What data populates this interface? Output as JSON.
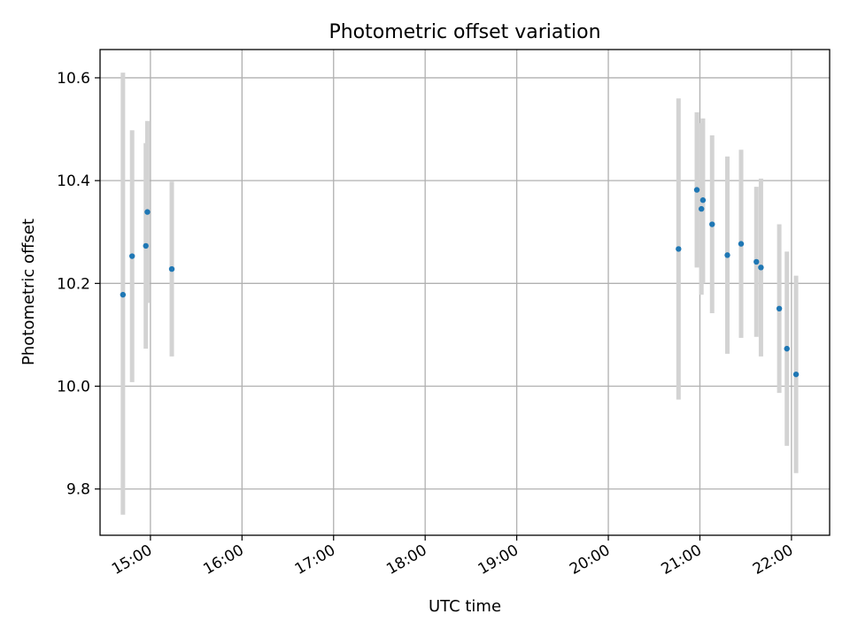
{
  "chart_data": {
    "type": "scatter",
    "title": "Photometric offset variation",
    "xlabel": "UTC time",
    "ylabel": "Photometric offset",
    "x_unit": "UTC hour",
    "xlim": [
      "14:27",
      "22:25"
    ],
    "ylim": [
      9.71,
      10.655
    ],
    "grid": true,
    "marker_color": "#1f77b4",
    "errorbar_color": "#d3d3d3",
    "x_ticks": [
      "15:00",
      "16:00",
      "17:00",
      "18:00",
      "19:00",
      "20:00",
      "21:00",
      "22:00"
    ],
    "y_ticks": [
      "9.8",
      "10.0",
      "10.2",
      "10.4",
      "10.6"
    ],
    "points": [
      {
        "time": "14:42",
        "offset": 10.178,
        "err_low": 9.75,
        "err_high": 10.61
      },
      {
        "time": "14:48",
        "offset": 10.253,
        "err_low": 10.008,
        "err_high": 10.498
      },
      {
        "time": "14:57",
        "offset": 10.273,
        "err_low": 10.073,
        "err_high": 10.473
      },
      {
        "time": "14:58",
        "offset": 10.339,
        "err_low": 10.162,
        "err_high": 10.516
      },
      {
        "time": "15:14",
        "offset": 10.228,
        "err_low": 10.058,
        "err_high": 10.398
      },
      {
        "time": "20:46",
        "offset": 10.267,
        "err_low": 9.974,
        "err_high": 10.56
      },
      {
        "time": "20:58",
        "offset": 10.382,
        "err_low": 10.231,
        "err_high": 10.533
      },
      {
        "time": "21:01",
        "offset": 10.345,
        "err_low": 10.178,
        "err_high": 10.512
      },
      {
        "time": "21:02",
        "offset": 10.362,
        "err_low": 10.2,
        "err_high": 10.521
      },
      {
        "time": "21:08",
        "offset": 10.315,
        "err_low": 10.142,
        "err_high": 10.488
      },
      {
        "time": "21:18",
        "offset": 10.255,
        "err_low": 10.063,
        "err_high": 10.447
      },
      {
        "time": "21:27",
        "offset": 10.277,
        "err_low": 10.094,
        "err_high": 10.46
      },
      {
        "time": "21:37",
        "offset": 10.242,
        "err_low": 10.096,
        "err_high": 10.388
      },
      {
        "time": "21:40",
        "offset": 10.231,
        "err_low": 10.058,
        "err_high": 10.404
      },
      {
        "time": "21:52",
        "offset": 10.151,
        "err_low": 9.987,
        "err_high": 10.315
      },
      {
        "time": "21:57",
        "offset": 10.073,
        "err_low": 9.884,
        "err_high": 10.262
      },
      {
        "time": "22:03",
        "offset": 10.023,
        "err_low": 9.831,
        "err_high": 10.215
      }
    ]
  }
}
